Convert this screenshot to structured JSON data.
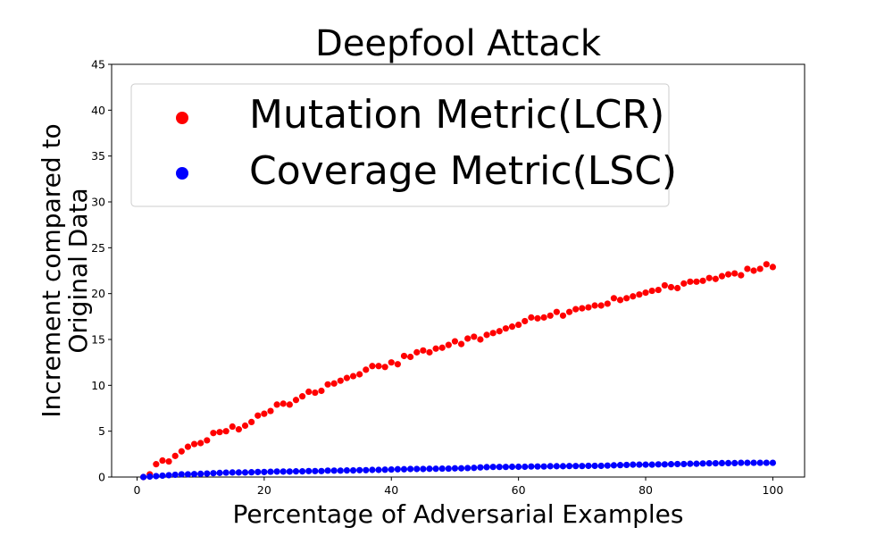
{
  "chart_data": {
    "type": "scatter",
    "title": "Deepfool Attack",
    "xlabel": "Percentage of Adversarial Examples",
    "ylabel_lines": [
      "Increment compared to",
      "Original Data"
    ],
    "xlim": [
      -4,
      105
    ],
    "ylim": [
      0,
      45
    ],
    "xticks": [
      "0",
      "20",
      "40",
      "60",
      "80",
      "100"
    ],
    "yticks": [
      "0",
      "5",
      "10",
      "15",
      "20",
      "25",
      "30",
      "35",
      "40",
      "45"
    ],
    "grid": false,
    "legend_position": "upper-left",
    "colors": {
      "lcr": "#ff0000",
      "lsc": "#0000ff"
    },
    "series": [
      {
        "name": "Mutation Metric(LCR)",
        "color": "#ff0000",
        "x": [
          1,
          2,
          3,
          4,
          5,
          6,
          7,
          8,
          9,
          10,
          11,
          12,
          13,
          14,
          15,
          16,
          17,
          18,
          19,
          20,
          21,
          22,
          23,
          24,
          25,
          26,
          27,
          28,
          29,
          30,
          31,
          32,
          33,
          34,
          35,
          36,
          37,
          38,
          39,
          40,
          41,
          42,
          43,
          44,
          45,
          46,
          47,
          48,
          49,
          50,
          51,
          52,
          53,
          54,
          55,
          56,
          57,
          58,
          59,
          60,
          61,
          62,
          63,
          64,
          65,
          66,
          67,
          68,
          69,
          70,
          71,
          72,
          73,
          74,
          75,
          76,
          77,
          78,
          79,
          80,
          81,
          82,
          83,
          84,
          85,
          86,
          87,
          88,
          89,
          90,
          91,
          92,
          93,
          94,
          95,
          96,
          97,
          98,
          99,
          100
        ],
        "y": [
          0.0,
          0.3,
          1.4,
          1.8,
          1.7,
          2.3,
          2.8,
          3.3,
          3.6,
          3.7,
          4.0,
          4.8,
          4.9,
          5.0,
          5.5,
          5.2,
          5.6,
          6.0,
          6.7,
          6.9,
          7.2,
          7.9,
          8.0,
          7.9,
          8.4,
          8.8,
          9.3,
          9.2,
          9.4,
          10.1,
          10.2,
          10.5,
          10.8,
          11.0,
          11.2,
          11.7,
          12.1,
          12.1,
          12.0,
          12.5,
          12.3,
          13.2,
          13.1,
          13.6,
          13.8,
          13.6,
          14.0,
          14.1,
          14.4,
          14.8,
          14.5,
          15.1,
          15.3,
          15.0,
          15.5,
          15.7,
          15.9,
          16.2,
          16.4,
          16.6,
          17.0,
          17.4,
          17.3,
          17.4,
          17.6,
          18.0,
          17.6,
          18.0,
          18.3,
          18.4,
          18.5,
          18.7,
          18.7,
          18.9,
          19.5,
          19.3,
          19.5,
          19.7,
          19.9,
          20.1,
          20.3,
          20.4,
          20.9,
          20.7,
          20.6,
          21.1,
          21.3,
          21.3,
          21.4,
          21.7,
          21.6,
          21.9,
          22.1,
          22.2,
          22.0,
          22.7,
          22.5,
          22.7,
          23.2,
          22.9
        ]
      },
      {
        "name": "Coverage Metric(LSC)",
        "color": "#0000ff",
        "x": [
          1,
          2,
          3,
          4,
          5,
          6,
          7,
          8,
          9,
          10,
          11,
          12,
          13,
          14,
          15,
          16,
          17,
          18,
          19,
          20,
          21,
          22,
          23,
          24,
          25,
          26,
          27,
          28,
          29,
          30,
          31,
          32,
          33,
          34,
          35,
          36,
          37,
          38,
          39,
          40,
          41,
          42,
          43,
          44,
          45,
          46,
          47,
          48,
          49,
          50,
          51,
          52,
          53,
          54,
          55,
          56,
          57,
          58,
          59,
          60,
          61,
          62,
          63,
          64,
          65,
          66,
          67,
          68,
          69,
          70,
          71,
          72,
          73,
          74,
          75,
          76,
          77,
          78,
          79,
          80,
          81,
          82,
          83,
          84,
          85,
          86,
          87,
          88,
          89,
          90,
          91,
          92,
          93,
          94,
          95,
          96,
          97,
          98,
          99,
          100
        ],
        "y": [
          0.0,
          0.05,
          0.1,
          0.15,
          0.2,
          0.25,
          0.3,
          0.3,
          0.32,
          0.35,
          0.38,
          0.42,
          0.45,
          0.48,
          0.5,
          0.5,
          0.5,
          0.52,
          0.55,
          0.55,
          0.58,
          0.6,
          0.6,
          0.6,
          0.62,
          0.62,
          0.65,
          0.65,
          0.65,
          0.7,
          0.7,
          0.7,
          0.72,
          0.72,
          0.75,
          0.75,
          0.78,
          0.78,
          0.8,
          0.82,
          0.85,
          0.85,
          0.88,
          0.88,
          0.88,
          0.9,
          0.9,
          0.92,
          0.92,
          0.95,
          0.95,
          0.98,
          1.0,
          1.05,
          1.08,
          1.1,
          1.1,
          1.1,
          1.12,
          1.12,
          1.12,
          1.15,
          1.15,
          1.15,
          1.18,
          1.18,
          1.18,
          1.2,
          1.2,
          1.2,
          1.22,
          1.22,
          1.22,
          1.25,
          1.28,
          1.3,
          1.32,
          1.35,
          1.35,
          1.35,
          1.35,
          1.38,
          1.38,
          1.4,
          1.42,
          1.42,
          1.45,
          1.45,
          1.48,
          1.5,
          1.5,
          1.52,
          1.52,
          1.52,
          1.55,
          1.55,
          1.55,
          1.55,
          1.55,
          1.55
        ]
      }
    ]
  }
}
